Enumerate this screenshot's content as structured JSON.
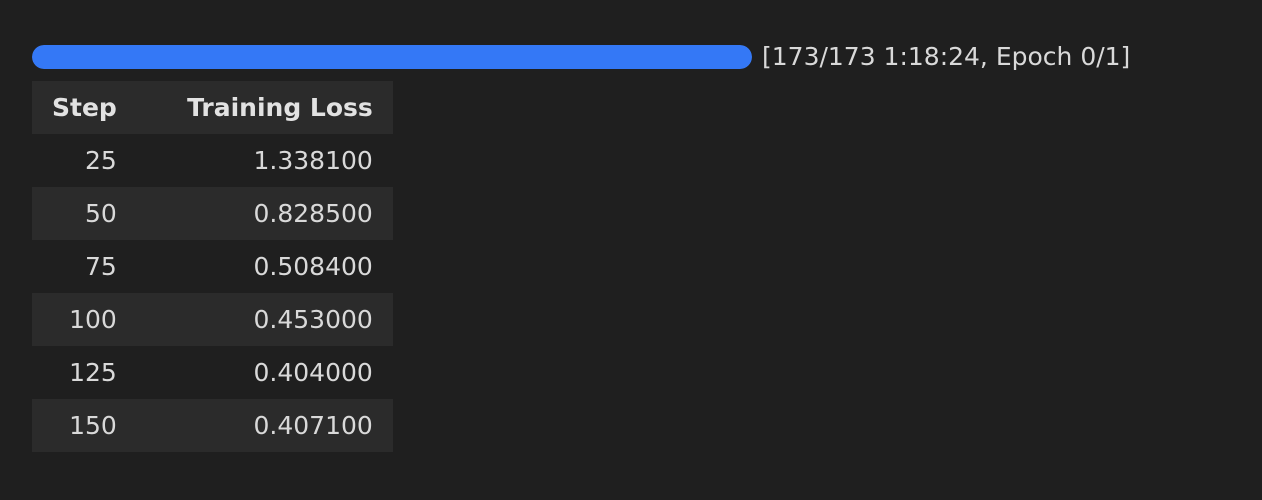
{
  "progress": {
    "current": 173,
    "total": 173,
    "fraction": 1.0,
    "status_text": "[173/173 1:18:24, Epoch 0/1]",
    "bar_color": "#3478f6"
  },
  "table": {
    "headers": {
      "step": "Step",
      "loss": "Training Loss"
    },
    "rows": [
      {
        "step": "25",
        "loss": "1.338100"
      },
      {
        "step": "50",
        "loss": "0.828500"
      },
      {
        "step": "75",
        "loss": "0.508400"
      },
      {
        "step": "100",
        "loss": "0.453000"
      },
      {
        "step": "125",
        "loss": "0.404000"
      },
      {
        "step": "150",
        "loss": "0.407100"
      }
    ]
  }
}
